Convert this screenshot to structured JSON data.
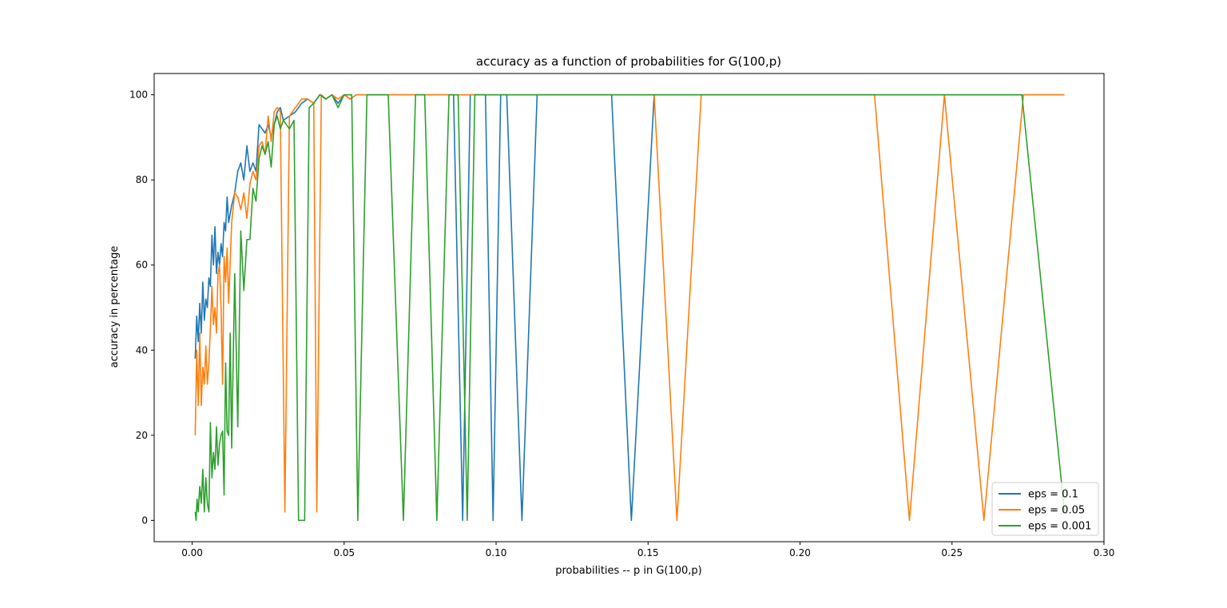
{
  "chart_data": {
    "type": "line",
    "title": "accuracy as a function of probabilities for G(100,p)",
    "xlabel": "probabilities -- p in G(100,p)",
    "ylabel": "accuracy in percentage",
    "xlim": [
      -0.0125,
      0.3
    ],
    "ylim": [
      -5,
      105
    ],
    "xticks": [
      0.0,
      0.05,
      0.1,
      0.15,
      0.2,
      0.25,
      0.3
    ],
    "xtick_labels": [
      "0.00",
      "0.05",
      "0.10",
      "0.15",
      "0.20",
      "0.25",
      "0.30"
    ],
    "yticks": [
      0,
      20,
      40,
      60,
      80,
      100
    ],
    "ytick_labels": [
      "0",
      "20",
      "40",
      "60",
      "80",
      "100"
    ],
    "grid": false,
    "legend_position": "lower-right",
    "series": [
      {
        "name": "eps = 0.1",
        "color": "#1f77b4",
        "points": [
          [
            0.001,
            38
          ],
          [
            0.0015,
            48
          ],
          [
            0.002,
            42
          ],
          [
            0.0025,
            51
          ],
          [
            0.003,
            44
          ],
          [
            0.0035,
            56
          ],
          [
            0.004,
            47
          ],
          [
            0.0045,
            52
          ],
          [
            0.005,
            50
          ],
          [
            0.0055,
            57
          ],
          [
            0.006,
            55
          ],
          [
            0.0065,
            67
          ],
          [
            0.007,
            60
          ],
          [
            0.0075,
            69
          ],
          [
            0.008,
            58
          ],
          [
            0.0085,
            63
          ],
          [
            0.009,
            60
          ],
          [
            0.0095,
            65
          ],
          [
            0.01,
            62
          ],
          [
            0.0105,
            70
          ],
          [
            0.011,
            68
          ],
          [
            0.0115,
            76
          ],
          [
            0.012,
            70
          ],
          [
            0.013,
            74
          ],
          [
            0.014,
            77
          ],
          [
            0.015,
            82
          ],
          [
            0.016,
            84
          ],
          [
            0.017,
            80
          ],
          [
            0.018,
            88
          ],
          [
            0.019,
            82
          ],
          [
            0.02,
            84
          ],
          [
            0.021,
            82
          ],
          [
            0.022,
            93
          ],
          [
            0.023,
            92
          ],
          [
            0.024,
            91
          ],
          [
            0.025,
            93
          ],
          [
            0.026,
            90
          ],
          [
            0.027,
            93
          ],
          [
            0.028,
            96
          ],
          [
            0.029,
            97
          ],
          [
            0.03,
            94
          ],
          [
            0.032,
            95
          ],
          [
            0.034,
            96
          ],
          [
            0.036,
            98
          ],
          [
            0.038,
            99
          ],
          [
            0.04,
            98
          ],
          [
            0.042,
            100
          ],
          [
            0.044,
            99
          ],
          [
            0.046,
            100
          ],
          [
            0.048,
            98
          ],
          [
            0.05,
            100
          ],
          [
            0.052,
            99
          ],
          [
            0.054,
            100
          ],
          [
            0.086,
            100
          ],
          [
            0.089,
            0
          ],
          [
            0.0915,
            100
          ],
          [
            0.094,
            100
          ],
          [
            0.0965,
            100
          ],
          [
            0.099,
            0
          ],
          [
            0.1015,
            100
          ],
          [
            0.1035,
            100
          ],
          [
            0.1085,
            0
          ],
          [
            0.1135,
            100
          ],
          [
            0.138,
            100
          ],
          [
            0.1445,
            0
          ],
          [
            0.152,
            100
          ],
          [
            0.287,
            100
          ]
        ]
      },
      {
        "name": "eps = 0.05",
        "color": "#ff7f0e",
        "points": [
          [
            0.001,
            20
          ],
          [
            0.0015,
            40
          ],
          [
            0.002,
            27
          ],
          [
            0.0025,
            44
          ],
          [
            0.003,
            27
          ],
          [
            0.0035,
            36
          ],
          [
            0.004,
            32
          ],
          [
            0.0045,
            41
          ],
          [
            0.005,
            32
          ],
          [
            0.0055,
            37
          ],
          [
            0.006,
            45
          ],
          [
            0.0065,
            55
          ],
          [
            0.007,
            46
          ],
          [
            0.0075,
            50
          ],
          [
            0.008,
            44
          ],
          [
            0.0085,
            58
          ],
          [
            0.009,
            60
          ],
          [
            0.0095,
            50
          ],
          [
            0.01,
            32
          ],
          [
            0.0105,
            62
          ],
          [
            0.011,
            56
          ],
          [
            0.0115,
            64
          ],
          [
            0.012,
            51
          ],
          [
            0.013,
            70
          ],
          [
            0.014,
            77
          ],
          [
            0.015,
            76
          ],
          [
            0.016,
            73
          ],
          [
            0.017,
            77
          ],
          [
            0.018,
            71
          ],
          [
            0.019,
            79
          ],
          [
            0.02,
            82
          ],
          [
            0.021,
            80
          ],
          [
            0.022,
            88
          ],
          [
            0.023,
            89
          ],
          [
            0.024,
            86
          ],
          [
            0.025,
            95
          ],
          [
            0.026,
            89
          ],
          [
            0.027,
            96
          ],
          [
            0.028,
            97
          ],
          [
            0.029,
            96
          ],
          [
            0.0305,
            2
          ],
          [
            0.032,
            95
          ],
          [
            0.034,
            97
          ],
          [
            0.035,
            98
          ],
          [
            0.036,
            99
          ],
          [
            0.038,
            99
          ],
          [
            0.04,
            98
          ],
          [
            0.041,
            2
          ],
          [
            0.0425,
            100
          ],
          [
            0.044,
            99
          ],
          [
            0.046,
            100
          ],
          [
            0.048,
            99
          ],
          [
            0.05,
            100
          ],
          [
            0.052,
            99
          ],
          [
            0.054,
            100
          ],
          [
            0.152,
            100
          ],
          [
            0.1595,
            0
          ],
          [
            0.1675,
            100
          ],
          [
            0.2245,
            100
          ],
          [
            0.236,
            0
          ],
          [
            0.2475,
            100
          ],
          [
            0.2605,
            0
          ],
          [
            0.2735,
            100
          ],
          [
            0.287,
            100
          ]
        ]
      },
      {
        "name": "eps = 0.001",
        "color": "#2ca02c",
        "points": [
          [
            0.001,
            2
          ],
          [
            0.0013,
            0
          ],
          [
            0.0016,
            5
          ],
          [
            0.002,
            2
          ],
          [
            0.0025,
            8
          ],
          [
            0.003,
            4
          ],
          [
            0.0035,
            12
          ],
          [
            0.004,
            2
          ],
          [
            0.0045,
            10
          ],
          [
            0.005,
            4
          ],
          [
            0.0055,
            2
          ],
          [
            0.006,
            23
          ],
          [
            0.0065,
            10
          ],
          [
            0.007,
            16
          ],
          [
            0.0075,
            12
          ],
          [
            0.008,
            22
          ],
          [
            0.0085,
            13
          ],
          [
            0.009,
            18
          ],
          [
            0.0095,
            20
          ],
          [
            0.01,
            21
          ],
          [
            0.0105,
            6
          ],
          [
            0.011,
            37
          ],
          [
            0.0115,
            21
          ],
          [
            0.012,
            20
          ],
          [
            0.0125,
            44
          ],
          [
            0.013,
            17
          ],
          [
            0.014,
            58
          ],
          [
            0.015,
            22
          ],
          [
            0.016,
            68
          ],
          [
            0.017,
            54
          ],
          [
            0.018,
            66
          ],
          [
            0.019,
            66
          ],
          [
            0.02,
            78
          ],
          [
            0.021,
            75
          ],
          [
            0.022,
            85
          ],
          [
            0.023,
            88
          ],
          [
            0.024,
            86
          ],
          [
            0.025,
            89
          ],
          [
            0.026,
            83
          ],
          [
            0.027,
            93
          ],
          [
            0.028,
            95
          ],
          [
            0.029,
            92
          ],
          [
            0.03,
            94
          ],
          [
            0.031,
            93
          ],
          [
            0.032,
            92
          ],
          [
            0.0335,
            94
          ],
          [
            0.035,
            0
          ],
          [
            0.037,
            0
          ],
          [
            0.0385,
            97
          ],
          [
            0.04,
            98
          ],
          [
            0.042,
            100
          ],
          [
            0.044,
            99
          ],
          [
            0.046,
            100
          ],
          [
            0.048,
            97
          ],
          [
            0.05,
            100
          ],
          [
            0.0525,
            100
          ],
          [
            0.0545,
            0
          ],
          [
            0.0575,
            100
          ],
          [
            0.0645,
            100
          ],
          [
            0.0695,
            0
          ],
          [
            0.0735,
            100
          ],
          [
            0.0765,
            100
          ],
          [
            0.0805,
            0
          ],
          [
            0.0845,
            100
          ],
          [
            0.0875,
            100
          ],
          [
            0.0905,
            0
          ],
          [
            0.093,
            100
          ],
          [
            0.095,
            100
          ],
          [
            0.0975,
            100
          ],
          [
            0.273,
            100
          ],
          [
            0.287,
            2
          ]
        ]
      }
    ]
  }
}
